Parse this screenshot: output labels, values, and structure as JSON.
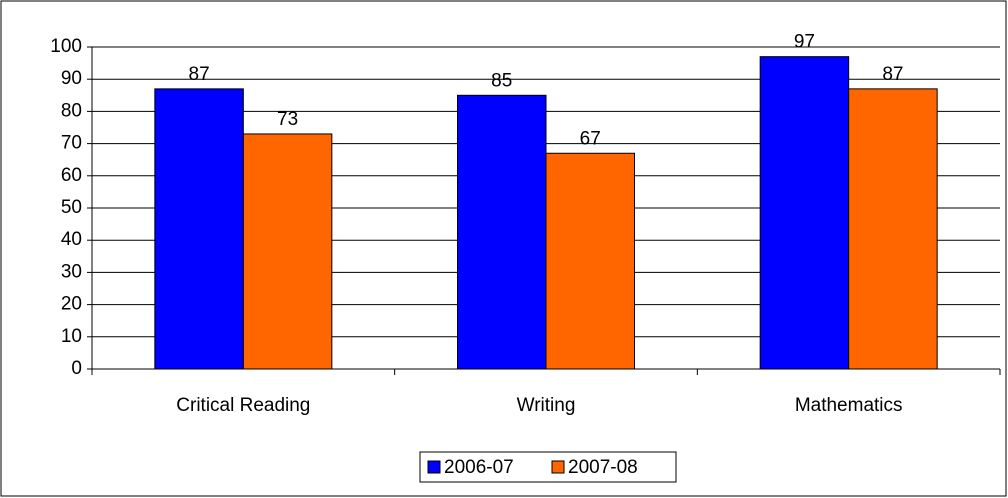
{
  "chart_data": {
    "type": "bar",
    "categories": [
      "Critical Reading",
      "Writing",
      "Mathematics"
    ],
    "series": [
      {
        "name": "2006-07",
        "color": "#0000ff",
        "values": [
          87,
          85,
          97
        ]
      },
      {
        "name": "2007-08",
        "color": "#ff6600",
        "values": [
          73,
          67,
          87
        ]
      }
    ],
    "ylim": [
      0,
      100
    ],
    "yticks": [
      0,
      10,
      20,
      30,
      40,
      50,
      60,
      70,
      80,
      90,
      100
    ],
    "grid": true,
    "legend": "bottom"
  }
}
